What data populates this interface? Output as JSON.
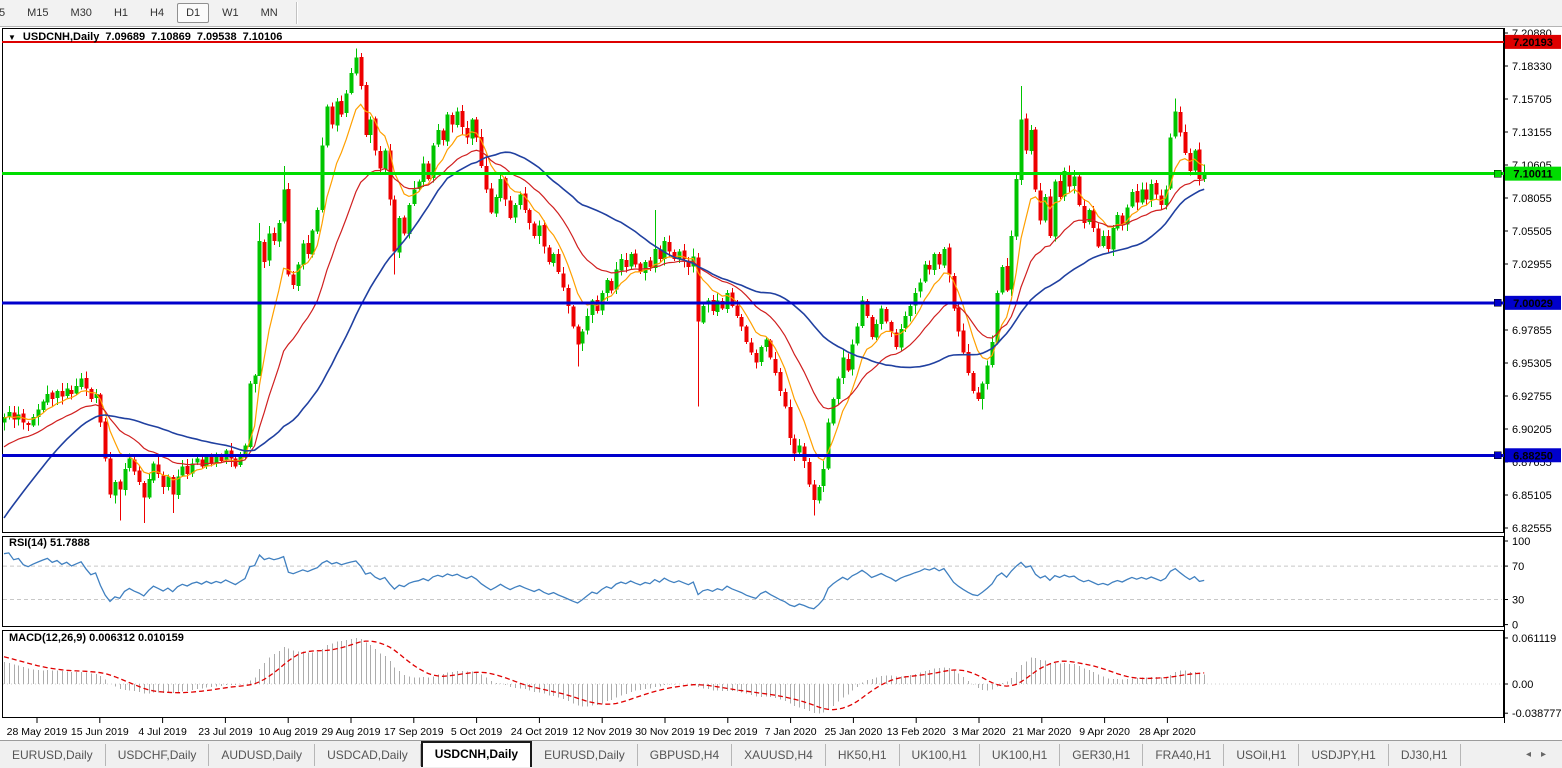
{
  "toolbar": {
    "buttons": [
      {
        "label": "5",
        "active": false
      },
      {
        "label": "M15",
        "active": false
      },
      {
        "label": "M30",
        "active": false
      },
      {
        "label": "H1",
        "active": false
      },
      {
        "label": "H4",
        "active": false
      },
      {
        "label": "D1",
        "active": true
      },
      {
        "label": "W1",
        "active": false
      },
      {
        "label": "MN",
        "active": false
      }
    ]
  },
  "header": {
    "marker": "▼",
    "symbol": "USDCNH,Daily",
    "open": "7.09689",
    "high": "7.10869",
    "low": "7.09538",
    "close": "7.10106"
  },
  "indicators": {
    "rsi_label": "RSI(14) 51.7888",
    "macd_label": "MACD(12,26,9) 0.006312 0.010159"
  },
  "price_axis": {
    "ticks": [
      "7.20880",
      "7.18330",
      "7.15705",
      "7.13155",
      "7.10605",
      "7.08055",
      "7.05505",
      "7.02955",
      null,
      "6.97855",
      "6.95305",
      "6.92755",
      "6.90205",
      "6.87655",
      "6.85105",
      "6.82555"
    ]
  },
  "rsi_axis": {
    "labels": [
      {
        "v": 100,
        "t": "100"
      },
      {
        "v": 70,
        "t": "70"
      },
      {
        "v": 30,
        "t": "30"
      },
      {
        "v": 0,
        "t": "0"
      }
    ],
    "dashed_levels": [
      70,
      30
    ]
  },
  "macd_axis": {
    "labels": [
      {
        "v": 0.061119,
        "t": "0.061119"
      },
      {
        "v": 0,
        "t": "0.00"
      },
      {
        "v": -0.038777,
        "t": "-0.038777"
      }
    ]
  },
  "time_axis": {
    "labels": [
      "28 May 2019",
      "15 Jun 2019",
      "4 Jul 2019",
      "23 Jul 2019",
      "10 Aug 2019",
      "29 Aug 2019",
      "17 Sep 2019",
      "5 Oct 2019",
      "24 Oct 2019",
      "12 Nov 2019",
      "30 Nov 2019",
      "19 Dec 2019",
      "7 Jan 2020",
      "25 Jan 2020",
      "13 Feb 2020",
      "3 Mar 2020",
      "21 Mar 2020",
      "9 Apr 2020",
      "28 Apr 2020"
    ]
  },
  "hlines": [
    {
      "price": 7.20193,
      "badge": "7.20193",
      "color": "#dd0000",
      "text_color": "#ffffff",
      "width": 2,
      "handle": false
    },
    {
      "price": 7.10011,
      "badge": "7.10011",
      "color": "#00dd00",
      "text_color": "#000000",
      "width": 3,
      "handle": true
    },
    {
      "price": 7.00029,
      "badge": "7.00029",
      "color": "#0000cc",
      "text_color": "#ffffff",
      "width": 3,
      "handle": true
    },
    {
      "price": 6.8825,
      "badge": "6.88250",
      "color": "#0000cc",
      "text_color": "#ffffff",
      "width": 3,
      "handle": true
    }
  ],
  "tab_bar": {
    "active_index": 4,
    "nav_left": "◂",
    "nav_right": "▸",
    "tabs": [
      {
        "label": "EURUSD,Daily"
      },
      {
        "label": "USDCHF,Daily"
      },
      {
        "label": "AUDUSD,Daily"
      },
      {
        "label": "USDCAD,Daily"
      },
      {
        "label": "USDCNH,Daily"
      },
      {
        "label": "EURUSD,Daily"
      },
      {
        "label": "GBPUSD,H4"
      },
      {
        "label": "XAUUSD,H4"
      },
      {
        "label": "HK50,H1"
      },
      {
        "label": "UK100,H1"
      },
      {
        "label": "UK100,H1"
      },
      {
        "label": "GER30,H1"
      },
      {
        "label": "FRA40,H1"
      },
      {
        "label": "USOil,H1"
      },
      {
        "label": "USDJPY,H1"
      },
      {
        "label": "DJ30,H1"
      }
    ]
  },
  "chart_data": {
    "type": "candlestick",
    "symbol": "USDCNH",
    "timeframe": "Daily",
    "last_bar": {
      "open": 7.09689,
      "high": 7.10869,
      "low": 7.09538,
      "close": 7.10106
    },
    "price_range": {
      "top_tick": 7.2088,
      "bottom_tick": 6.82555,
      "tick_step": 0.0255
    },
    "first_open": 6.908,
    "closes": [
      6.912,
      6.916,
      6.91,
      6.914,
      6.908,
      6.906,
      6.912,
      6.918,
      6.924,
      6.93,
      6.926,
      6.932,
      6.928,
      6.934,
      6.93,
      6.936,
      6.942,
      6.934,
      6.926,
      6.93,
      6.908,
      6.88,
      6.852,
      6.862,
      6.856,
      6.872,
      6.88,
      6.87,
      6.862,
      6.85,
      6.864,
      6.876,
      6.868,
      6.858,
      6.866,
      6.852,
      6.866,
      6.874,
      6.868,
      6.876,
      6.88,
      6.874,
      6.882,
      6.876,
      6.882,
      6.878,
      6.886,
      6.88,
      6.874,
      6.882,
      6.89,
      6.938,
      6.944,
      7.048,
      7.032,
      7.054,
      7.048,
      7.062,
      7.088,
      7.022,
      7.014,
      7.03,
      7.046,
      7.038,
      7.056,
      7.072,
      7.122,
      7.152,
      7.138,
      7.156,
      7.146,
      7.162,
      7.178,
      7.19,
      7.168,
      7.13,
      7.142,
      7.118,
      7.104,
      7.118,
      7.08,
      7.04,
      7.066,
      7.054,
      7.076,
      7.088,
      7.094,
      7.108,
      7.096,
      7.122,
      7.134,
      7.126,
      7.146,
      7.138,
      7.148,
      7.136,
      7.128,
      7.142,
      7.128,
      7.106,
      7.088,
      7.07,
      7.082,
      7.096,
      7.08,
      7.066,
      7.076,
      7.084,
      7.072,
      7.062,
      7.052,
      7.06,
      7.044,
      7.032,
      7.038,
      7.024,
      7.012,
      6.998,
      6.982,
      6.968,
      6.978,
      6.99,
      7.002,
      6.994,
      7.008,
      7.018,
      7.01,
      7.026,
      7.034,
      7.028,
      7.038,
      7.03,
      7.024,
      7.032,
      7.028,
      7.042,
      7.034,
      7.048,
      7.04,
      7.034,
      7.04,
      7.034,
      7.028,
      7.036,
      6.986,
      6.998,
      7.002,
      6.994,
      7.002,
      6.996,
      7.008,
      6.998,
      6.99,
      6.982,
      6.97,
      6.962,
      6.954,
      6.966,
      6.972,
      6.958,
      6.946,
      6.932,
      6.92,
      6.896,
      6.884,
      6.89,
      6.878,
      6.86,
      6.848,
      6.858,
      6.872,
      6.908,
      6.926,
      6.942,
      6.958,
      6.948,
      6.968,
      6.982,
      7.002,
      6.99,
      6.974,
      6.984,
      6.996,
      6.986,
      6.978,
      6.966,
      6.98,
      6.99,
      6.998,
      7.008,
      7.016,
      7.03,
      7.026,
      7.038,
      7.03,
      7.042,
      7.022,
      6.996,
      6.978,
      6.962,
      6.946,
      6.932,
      6.926,
      6.938,
      6.952,
      6.97,
      7.008,
      7.028,
      7.01,
      7.052,
      7.096,
      7.142,
      7.118,
      7.134,
      7.088,
      7.064,
      7.082,
      7.052,
      7.094,
      7.082,
      7.102,
      7.09,
      7.098,
      7.076,
      7.062,
      7.072,
      7.058,
      7.044,
      7.052,
      7.042,
      7.058,
      7.068,
      7.06,
      7.074,
      7.086,
      7.078,
      7.088,
      7.08,
      7.092,
      7.084,
      7.076,
      7.088,
      7.128,
      7.148,
      7.132,
      7.116,
      7.102,
      7.118,
      7.096,
      7.101
    ],
    "warmup_closes": [
      6.7,
      6.704,
      6.708,
      6.712,
      6.71,
      6.716,
      6.722,
      6.728,
      6.734,
      6.742,
      6.75,
      6.758,
      6.768,
      6.778,
      6.788,
      6.8,
      6.812,
      6.824,
      6.836,
      6.848,
      6.858,
      6.868,
      6.876,
      6.884,
      6.89,
      6.896,
      6.9,
      6.904,
      6.906,
      6.908,
      6.91,
      6.912,
      6.91,
      6.914,
      6.912,
      6.916,
      6.914,
      6.91,
      6.912,
      6.914
    ],
    "special_wicks": [
      {
        "i": 24,
        "low": 6.832
      },
      {
        "i": 29,
        "low": 6.83
      },
      {
        "i": 35,
        "low": 6.838
      },
      {
        "i": 53,
        "low": 6.944,
        "high": 7.062
      },
      {
        "i": 58,
        "high": 7.106
      },
      {
        "i": 73,
        "high": 7.197
      },
      {
        "i": 81,
        "low": 7.022
      },
      {
        "i": 119,
        "low": 6.951
      },
      {
        "i": 135,
        "high": 7.072
      },
      {
        "i": 144,
        "low": 6.92
      },
      {
        "i": 168,
        "low": 6.836
      },
      {
        "i": 203,
        "low": 6.918
      },
      {
        "i": 211,
        "high": 7.168
      },
      {
        "i": 243,
        "high": 7.158
      }
    ],
    "moving_averages": [
      {
        "type": "ema",
        "period": 8,
        "color": "#ffa000"
      },
      {
        "type": "ema",
        "period": 21,
        "color": "#d02020"
      },
      {
        "type": "sma",
        "period": 40,
        "color": "#2040a0"
      }
    ],
    "rsi": {
      "period": 14,
      "current": 51.7888,
      "color": "#4080c0",
      "levels": [
        70,
        30
      ],
      "scale": [
        0,
        100
      ]
    },
    "macd": {
      "fast": 12,
      "slow": 26,
      "signal": 9,
      "current_macd": 0.006312,
      "current_signal": 0.010159,
      "bar_color": "#acacac",
      "signal_color": "#e00000",
      "scale_top": 0.061119,
      "scale_bottom": -0.038777
    },
    "colors": {
      "up": "#00c400",
      "down": "#ee0000",
      "background": "#ffffff",
      "border": "#000000",
      "rsi_dash": "#c8c8c8",
      "axis_text": "#000000"
    }
  }
}
